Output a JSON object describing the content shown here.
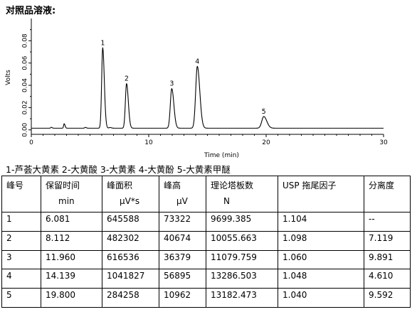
{
  "title": "对照品溶液:",
  "chart_data": {
    "type": "line",
    "xlabel": "Time (min)",
    "ylabel": "Volts",
    "xlim": [
      0,
      30
    ],
    "ylim": [
      -0.004,
      0.1
    ],
    "x_ticks": [
      0,
      10,
      20,
      30
    ],
    "y_ticks": [
      0.0,
      0.02,
      0.04,
      0.06,
      0.08
    ],
    "y_tick_labels": [
      "0.00",
      "0.02",
      "0.04",
      "0.06",
      "0.08"
    ],
    "baseline": 0.0015,
    "minor_peaks": [
      {
        "x": 1.7,
        "h": 0.0008,
        "w": 0.05
      },
      {
        "x": 2.8,
        "h": 0.004,
        "w": 0.05
      },
      {
        "x": 4.6,
        "h": 0.0007,
        "w": 0.06
      },
      {
        "x": 6.7,
        "h": 0.0006,
        "w": 0.08
      }
    ],
    "peaks": [
      {
        "label": "1",
        "rt": 6.081,
        "height": 0.072,
        "width": 0.09
      },
      {
        "label": "2",
        "rt": 8.112,
        "height": 0.04,
        "width": 0.1
      },
      {
        "label": "3",
        "rt": 11.96,
        "height": 0.0355,
        "width": 0.12
      },
      {
        "label": "4",
        "rt": 14.139,
        "height": 0.0555,
        "width": 0.14
      },
      {
        "label": "5",
        "rt": 19.8,
        "height": 0.0105,
        "width": 0.17
      }
    ]
  },
  "legend": "1-芦荟大黄素 2-大黄酸 3-大黄素 4-大黄酚 5-大黄素甲醚",
  "table": {
    "headers": [
      {
        "l1": "峰号",
        "l2": ""
      },
      {
        "l1": "保留时间",
        "l2": "min"
      },
      {
        "l1": "峰面积",
        "l2": "μV*s"
      },
      {
        "l1": "峰高",
        "l2": "μV"
      },
      {
        "l1": "理论塔板数",
        "l2": "N"
      },
      {
        "l1": "USP 拖尾因子",
        "l2": ""
      },
      {
        "l1": "分离度",
        "l2": ""
      }
    ],
    "rows": [
      [
        "1",
        "6.081",
        "645588",
        "73322",
        "9699.385",
        "1.104",
        "--"
      ],
      [
        "2",
        "8.112",
        "482302",
        "40674",
        "10055.663",
        "1.098",
        "7.119"
      ],
      [
        "3",
        "11.960",
        "616536",
        "36379",
        "11079.759",
        "1.060",
        "9.891"
      ],
      [
        "4",
        "14.139",
        "1041827",
        "56895",
        "13286.503",
        "1.048",
        "4.610"
      ],
      [
        "5",
        "19.800",
        "284258",
        "10962",
        "13182.473",
        "1.040",
        "9.592"
      ]
    ]
  }
}
